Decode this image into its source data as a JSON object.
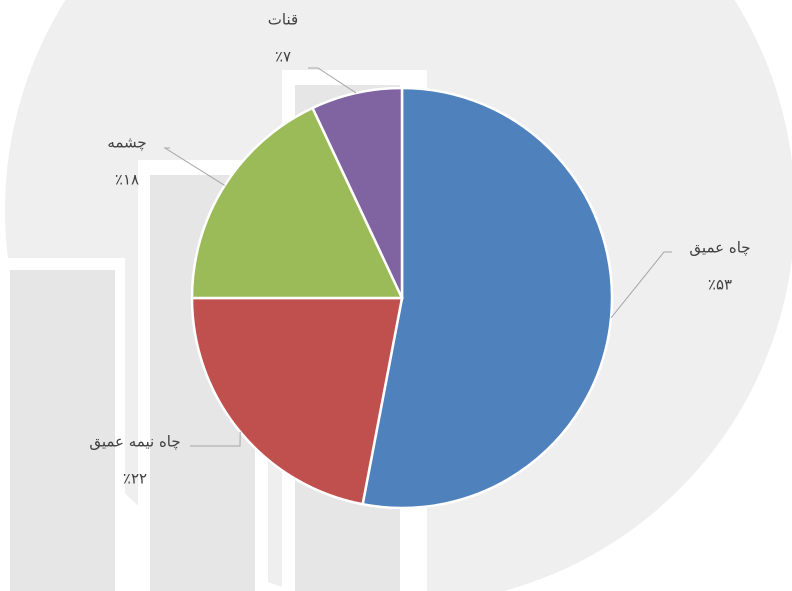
{
  "chart_data": {
    "type": "pie",
    "categories": [
      "چاه عمیق",
      "چاه نیمه عمیق",
      "چشمه",
      "قنات"
    ],
    "values": [
      53,
      22,
      18,
      7
    ],
    "value_labels": [
      "٪۵۳",
      "٪۲۲",
      "٪۱۸",
      "٪۷"
    ],
    "colors": [
      "#4f81bd",
      "#c0504d",
      "#9bbb59",
      "#8064a2"
    ]
  }
}
